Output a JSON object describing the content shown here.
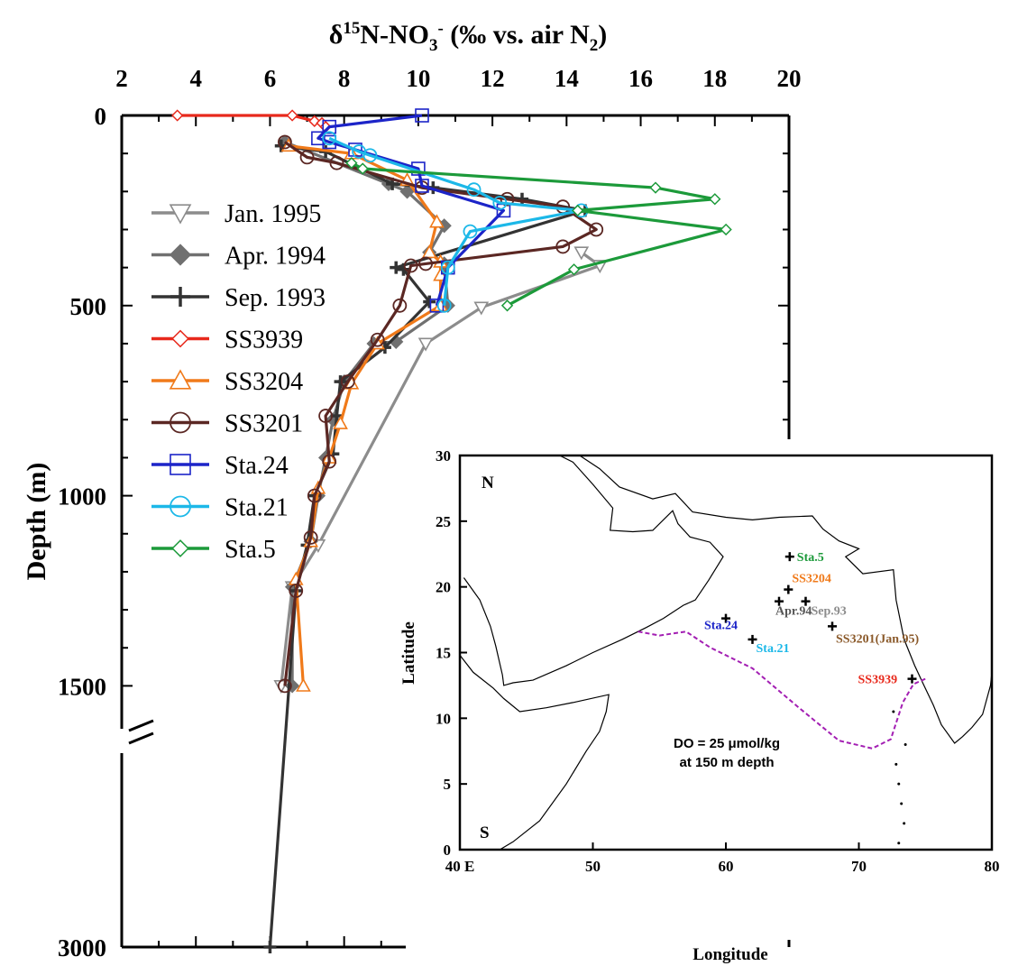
{
  "chart_data": [
    {
      "type": "line",
      "title": "",
      "xlabel_main": "δ",
      "xlabel_sup": "15",
      "xlabel_mid": "N-NO",
      "xlabel_sub": "3",
      "xlabel_sup2": "-",
      "xlabel_end": " (‰ vs. air N",
      "xlabel_sub2": "2",
      "xlabel_close": ")",
      "ylabel": "Depth (m)",
      "xlim": [
        2,
        20
      ],
      "ylim": [
        0,
        3000
      ],
      "axis_break": [
        1600,
        2900
      ],
      "x_ticks": [
        "2",
        "4",
        "6",
        "8",
        "10",
        "12",
        "14",
        "16",
        "18",
        "20"
      ],
      "y_ticks": [
        "0",
        "500",
        "1000",
        "1500",
        "3000"
      ],
      "legend_position": "left",
      "series": [
        {
          "name": "Jan. 1995",
          "color": "#8c8c8c",
          "marker": "triangle-down",
          "points": [
            [
              14.4,
              360
            ],
            [
              14.9,
              395
            ],
            [
              11.7,
              505
            ],
            [
              10.2,
              600
            ],
            [
              7.3,
              1130
            ],
            [
              6.6,
              1240
            ],
            [
              6.3,
              1500
            ]
          ]
        },
        {
          "name": "Apr. 1994",
          "color": "#707070",
          "marker": "diamond",
          "points": [
            [
              6.4,
              70
            ],
            [
              9.2,
              180
            ],
            [
              9.7,
              200
            ],
            [
              10.7,
              290
            ],
            [
              10.3,
              360
            ],
            [
              10.7,
              390
            ],
            [
              10.8,
              500
            ],
            [
              9.4,
              595
            ],
            [
              8.8,
              600
            ],
            [
              8.0,
              700
            ],
            [
              7.7,
              800
            ],
            [
              7.5,
              900
            ],
            [
              7.3,
              1000
            ],
            [
              7.1,
              1120
            ],
            [
              6.6,
              1240
            ],
            [
              6.6,
              1500
            ]
          ]
        },
        {
          "name": "Sep. 1993",
          "color": "#333333",
          "marker": "plus",
          "points": [
            [
              6.3,
              80
            ],
            [
              7.5,
              95
            ],
            [
              9.3,
              180
            ],
            [
              10.4,
              190
            ],
            [
              12.8,
              220
            ],
            [
              14.5,
              250
            ],
            [
              9.4,
              400
            ],
            [
              9.6,
              405
            ],
            [
              10.3,
              490
            ],
            [
              9.1,
              610
            ],
            [
              7.9,
              700
            ],
            [
              7.8,
              790
            ],
            [
              7.7,
              890
            ],
            [
              7.2,
              1000
            ],
            [
              7.0,
              1130
            ],
            [
              6.7,
              1250
            ],
            [
              6.0,
              3000
            ]
          ]
        },
        {
          "name": "SS3939",
          "color": "#e8291c",
          "marker": "diamond-open",
          "points": [
            [
              3.5,
              0
            ],
            [
              6.6,
              0
            ],
            [
              7.2,
              15
            ],
            [
              7.4,
              20
            ],
            [
              7.5,
              30
            ]
          ]
        },
        {
          "name": "SS3204",
          "color": "#f07a1a",
          "marker": "triangle-up",
          "points": [
            [
              6.5,
              80
            ],
            [
              8.2,
              100
            ],
            [
              9.7,
              170
            ],
            [
              10.5,
              280
            ],
            [
              10.3,
              360
            ],
            [
              10.6,
              385
            ],
            [
              10.6,
              420
            ],
            [
              10.6,
              500
            ],
            [
              8.9,
              600
            ],
            [
              8.2,
              705
            ],
            [
              7.9,
              810
            ],
            [
              7.6,
              900
            ],
            [
              7.3,
              980
            ],
            [
              7.1,
              1120
            ],
            [
              6.7,
              1220
            ],
            [
              6.9,
              1500
            ]
          ]
        },
        {
          "name": "SS3201",
          "color": "#5b2723",
          "marker": "circle",
          "points": [
            [
              6.4,
              70
            ],
            [
              7.0,
              110
            ],
            [
              7.8,
              125
            ],
            [
              10.1,
              190
            ],
            [
              12.4,
              220
            ],
            [
              13.9,
              240
            ],
            [
              14.8,
              300
            ],
            [
              13.9,
              345
            ],
            [
              10.2,
              390
            ],
            [
              9.8,
              395
            ],
            [
              9.5,
              500
            ],
            [
              8.9,
              590
            ],
            [
              8.1,
              700
            ],
            [
              7.5,
              790
            ],
            [
              7.6,
              910
            ],
            [
              7.2,
              1000
            ],
            [
              7.1,
              1110
            ],
            [
              6.7,
              1250
            ],
            [
              6.4,
              1500
            ]
          ]
        },
        {
          "name": "Sta.24",
          "color": "#1c24c8",
          "marker": "square",
          "points": [
            [
              10.1,
              0
            ],
            [
              7.6,
              30
            ],
            [
              7.3,
              60
            ],
            [
              7.6,
              70
            ],
            [
              8.3,
              90
            ],
            [
              10.0,
              140
            ],
            [
              10.1,
              185
            ],
            [
              12.3,
              250
            ],
            [
              10.8,
              400
            ],
            [
              10.5,
              500
            ]
          ]
        },
        {
          "name": "Sta.21",
          "color": "#1cb8e8",
          "marker": "circle",
          "points": [
            [
              7.6,
              60
            ],
            [
              8.4,
              95
            ],
            [
              8.7,
              105
            ],
            [
              11.5,
              195
            ],
            [
              12.2,
              230
            ],
            [
              14.4,
              250
            ],
            [
              11.4,
              305
            ],
            [
              10.8,
              400
            ],
            [
              10.7,
              500
            ]
          ]
        },
        {
          "name": "Sta.5",
          "color": "#1c9a3a",
          "marker": "diamond-open",
          "points": [
            [
              8.2,
              125
            ],
            [
              8.5,
              140
            ],
            [
              16.4,
              190
            ],
            [
              18.0,
              220
            ],
            [
              14.3,
              250
            ],
            [
              18.3,
              300
            ],
            [
              14.2,
              405
            ],
            [
              12.4,
              500
            ]
          ]
        }
      ]
    },
    {
      "type": "scatter",
      "title": "",
      "xlabel": "Longitude",
      "ylabel": "Latitude",
      "xlim": [
        40,
        80
      ],
      "ylim": [
        0,
        30
      ],
      "x_ticks": [
        "40 E",
        "50",
        "60",
        "70",
        "80"
      ],
      "y_ticks": [
        "0",
        "5",
        "10",
        "15",
        "20",
        "25",
        "30"
      ],
      "compass_north": "N",
      "compass_south": "S",
      "note_line1": "DO = 25 μmol/kg",
      "note_line2": "at 150 m depth",
      "do_contour_color": "#a31fb3",
      "stations": [
        {
          "name": "Sta.5",
          "lon": 64.8,
          "lat": 22.3,
          "color": "#1c9a3a"
        },
        {
          "name": "SS3204",
          "lon": 64.7,
          "lat": 19.8,
          "color": "#f07a1a"
        },
        {
          "name": "Apr.94",
          "lon": 64.0,
          "lat": 18.9,
          "color": "#555555"
        },
        {
          "name": "Sep.93",
          "lon": 66.0,
          "lat": 18.9,
          "color": "#8c8c8c"
        },
        {
          "name": "SS3201(Jan.95)",
          "lon": 68.0,
          "lat": 17.0,
          "color": "#8b5a2b"
        },
        {
          "name": "Sta.24",
          "lon": 60.0,
          "lat": 17.6,
          "color": "#1c24c8"
        },
        {
          "name": "Sta.21",
          "lon": 62.0,
          "lat": 16.0,
          "color": "#1cb8e8"
        },
        {
          "name": "SS3939",
          "lon": 74.0,
          "lat": 13.0,
          "color": "#e8291c"
        }
      ]
    }
  ]
}
